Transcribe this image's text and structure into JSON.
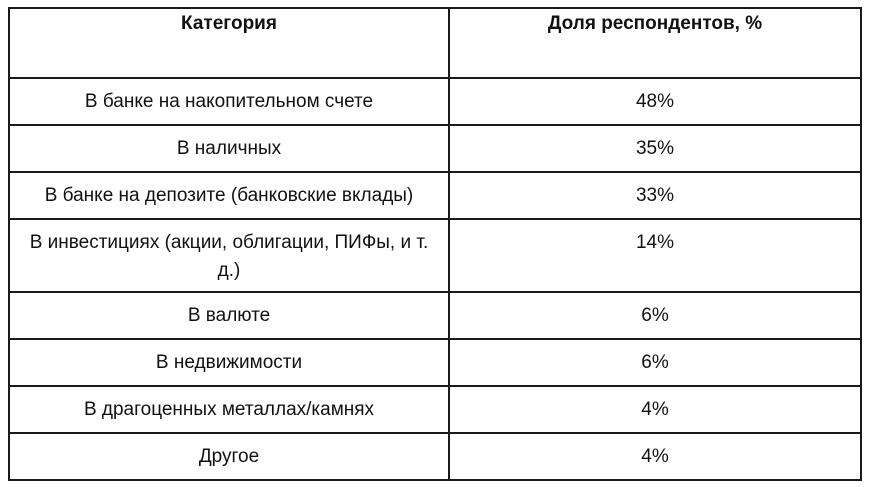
{
  "table": {
    "headers": {
      "category": "Категория",
      "share": "Доля респондентов, %"
    },
    "rows": [
      {
        "category": "В банке на накопительном счете",
        "share": "48%"
      },
      {
        "category": "В наличных",
        "share": "35%"
      },
      {
        "category": "В банке на депозите (банковские вклады)",
        "share": "33%"
      },
      {
        "category": "В инвестициях (акции, облигации, ПИФы, и т. д.)",
        "share": "14%"
      },
      {
        "category": "В валюте",
        "share": "6%"
      },
      {
        "category": "В недвижимости",
        "share": "6%"
      },
      {
        "category": "В драгоценных металлах/камнях",
        "share": "4%"
      },
      {
        "category": "Другое",
        "share": "4%"
      }
    ]
  }
}
